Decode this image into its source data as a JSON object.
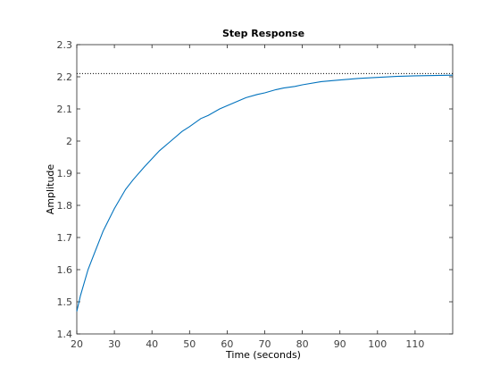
{
  "chart_data": {
    "type": "line",
    "title": "Step Response",
    "xlabel": "Time (seconds)",
    "ylabel": "Amplitude",
    "xlim": [
      20,
      120
    ],
    "ylim": [
      1.4,
      2.3
    ],
    "x_ticks": [
      20,
      30,
      40,
      50,
      60,
      70,
      80,
      90,
      100,
      110
    ],
    "y_ticks": [
      1.4,
      1.5,
      1.6,
      1.7,
      1.8,
      1.9,
      2,
      2.1,
      2.2,
      2.3
    ],
    "grid": false,
    "reference_line": {
      "style": "dotted",
      "y": 2.21,
      "color": "#000000"
    },
    "series": [
      {
        "color": "#0072bd",
        "x": [
          20,
          21,
          22,
          23,
          24,
          25,
          27,
          30,
          33,
          35,
          38,
          40,
          42,
          45,
          48,
          50,
          53,
          55,
          58,
          60,
          63,
          65,
          68,
          70,
          73,
          75,
          78,
          80,
          85,
          90,
          95,
          100,
          105,
          110,
          115,
          120
        ],
        "y": [
          1.47,
          1.52,
          1.56,
          1.6,
          1.63,
          1.66,
          1.72,
          1.79,
          1.85,
          1.88,
          1.92,
          1.945,
          1.97,
          2.0,
          2.03,
          2.045,
          2.07,
          2.08,
          2.1,
          2.11,
          2.125,
          2.135,
          2.145,
          2.15,
          2.16,
          2.165,
          2.17,
          2.175,
          2.185,
          2.19,
          2.195,
          2.198,
          2.201,
          2.203,
          2.204,
          2.205
        ]
      }
    ]
  }
}
